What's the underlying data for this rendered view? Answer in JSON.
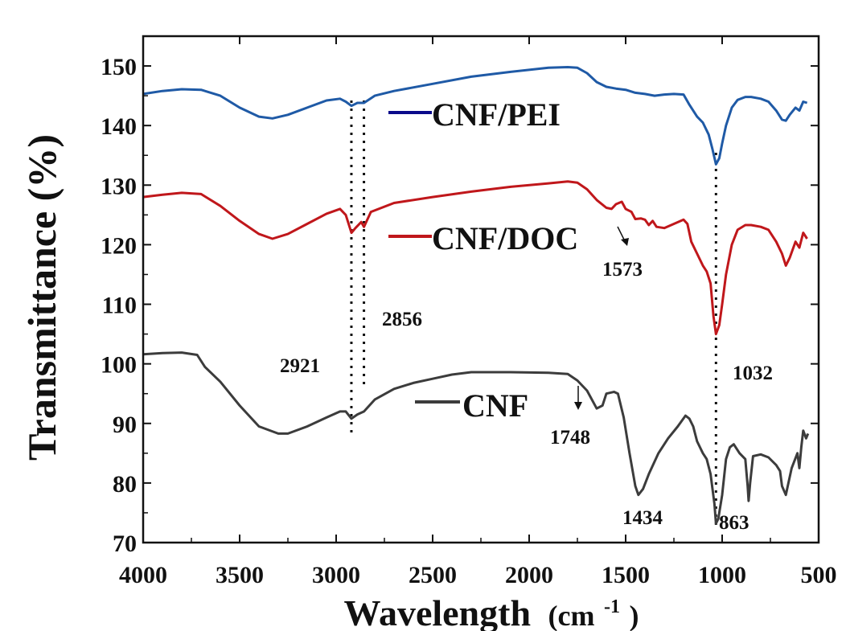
{
  "chart_data": {
    "type": "line",
    "xlabel": "Wavelength",
    "xlabel_unit_base": "(cm",
    "xlabel_unit_sup": "-1",
    "xlabel_unit_close": ")",
    "ylabel": "Transmittance (%)",
    "xlim": [
      4000,
      500
    ],
    "ylim": [
      70,
      155
    ],
    "x_ticks": [
      4000,
      3500,
      3000,
      2500,
      2000,
      1500,
      1000,
      500
    ],
    "x_tick_labels": [
      "4000",
      "3500",
      "3000",
      "2500",
      "2000",
      "1500",
      "1000",
      "500"
    ],
    "y_ticks": [
      70,
      80,
      90,
      100,
      110,
      120,
      130,
      140,
      150
    ],
    "y_tick_labels": [
      "70",
      "80",
      "90",
      "100",
      "110",
      "120",
      "130",
      "140",
      "150"
    ],
    "grid": false,
    "series": [
      {
        "name": "CNF/PEI",
        "color": "#1f5aa6",
        "legend_color": "#0a0a8a",
        "points": [
          [
            4000,
            145.3
          ],
          [
            3900,
            145.8
          ],
          [
            3800,
            146.1
          ],
          [
            3700,
            146.0
          ],
          [
            3600,
            145.0
          ],
          [
            3500,
            143.0
          ],
          [
            3400,
            141.5
          ],
          [
            3330,
            141.2
          ],
          [
            3250,
            141.8
          ],
          [
            3150,
            143.0
          ],
          [
            3050,
            144.2
          ],
          [
            2980,
            144.5
          ],
          [
            2950,
            144.0
          ],
          [
            2921,
            143.3
          ],
          [
            2890,
            143.8
          ],
          [
            2856,
            143.8
          ],
          [
            2800,
            145.0
          ],
          [
            2700,
            145.8
          ],
          [
            2500,
            147.0
          ],
          [
            2300,
            148.2
          ],
          [
            2100,
            149.0
          ],
          [
            1900,
            149.7
          ],
          [
            1800,
            149.8
          ],
          [
            1750,
            149.7
          ],
          [
            1700,
            148.8
          ],
          [
            1650,
            147.3
          ],
          [
            1600,
            146.5
          ],
          [
            1550,
            146.2
          ],
          [
            1500,
            146.0
          ],
          [
            1450,
            145.5
          ],
          [
            1400,
            145.3
          ],
          [
            1350,
            145.0
          ],
          [
            1300,
            145.2
          ],
          [
            1250,
            145.3
          ],
          [
            1200,
            145.2
          ],
          [
            1170,
            143.5
          ],
          [
            1130,
            141.5
          ],
          [
            1100,
            140.5
          ],
          [
            1070,
            138.5
          ],
          [
            1050,
            136.0
          ],
          [
            1032,
            133.5
          ],
          [
            1015,
            134.5
          ],
          [
            1000,
            137.0
          ],
          [
            980,
            140.0
          ],
          [
            950,
            143.0
          ],
          [
            920,
            144.3
          ],
          [
            880,
            144.8
          ],
          [
            850,
            144.8
          ],
          [
            800,
            144.5
          ],
          [
            760,
            144.0
          ],
          [
            720,
            142.5
          ],
          [
            690,
            141.0
          ],
          [
            670,
            140.8
          ],
          [
            650,
            141.8
          ],
          [
            620,
            143.0
          ],
          [
            600,
            142.5
          ],
          [
            580,
            144.0
          ],
          [
            560,
            143.8
          ]
        ]
      },
      {
        "name": "CNF/DOC",
        "color": "#c0171b",
        "legend_color": "#c0171b",
        "points": [
          [
            4000,
            128.0
          ],
          [
            3900,
            128.4
          ],
          [
            3800,
            128.7
          ],
          [
            3700,
            128.5
          ],
          [
            3600,
            126.5
          ],
          [
            3500,
            124.0
          ],
          [
            3400,
            121.8
          ],
          [
            3330,
            121.0
          ],
          [
            3250,
            121.8
          ],
          [
            3150,
            123.5
          ],
          [
            3050,
            125.2
          ],
          [
            2980,
            126.0
          ],
          [
            2950,
            125.0
          ],
          [
            2921,
            122.0
          ],
          [
            2900,
            122.8
          ],
          [
            2870,
            123.8
          ],
          [
            2856,
            123.0
          ],
          [
            2820,
            125.5
          ],
          [
            2700,
            127.0
          ],
          [
            2500,
            128.0
          ],
          [
            2300,
            128.9
          ],
          [
            2100,
            129.7
          ],
          [
            1900,
            130.3
          ],
          [
            1800,
            130.6
          ],
          [
            1750,
            130.4
          ],
          [
            1700,
            129.3
          ],
          [
            1650,
            127.5
          ],
          [
            1600,
            126.2
          ],
          [
            1573,
            126.0
          ],
          [
            1550,
            126.8
          ],
          [
            1520,
            127.2
          ],
          [
            1500,
            126.0
          ],
          [
            1470,
            125.5
          ],
          [
            1450,
            124.3
          ],
          [
            1420,
            124.4
          ],
          [
            1400,
            124.2
          ],
          [
            1380,
            123.3
          ],
          [
            1360,
            124.0
          ],
          [
            1340,
            123.0
          ],
          [
            1300,
            122.8
          ],
          [
            1250,
            123.5
          ],
          [
            1200,
            124.2
          ],
          [
            1180,
            123.5
          ],
          [
            1160,
            120.5
          ],
          [
            1130,
            118.5
          ],
          [
            1100,
            116.5
          ],
          [
            1080,
            115.5
          ],
          [
            1060,
            113.5
          ],
          [
            1045,
            108.0
          ],
          [
            1032,
            105.0
          ],
          [
            1015,
            106.5
          ],
          [
            1000,
            110.0
          ],
          [
            980,
            115.0
          ],
          [
            950,
            120.0
          ],
          [
            920,
            122.5
          ],
          [
            880,
            123.3
          ],
          [
            850,
            123.3
          ],
          [
            800,
            123.0
          ],
          [
            760,
            122.5
          ],
          [
            720,
            120.5
          ],
          [
            690,
            118.5
          ],
          [
            670,
            116.5
          ],
          [
            650,
            117.8
          ],
          [
            620,
            120.5
          ],
          [
            600,
            119.5
          ],
          [
            580,
            122.0
          ],
          [
            560,
            121.0
          ]
        ]
      },
      {
        "name": "CNF",
        "color": "#3c3c3c",
        "legend_color": "#3c3c3c",
        "points": [
          [
            4000,
            101.6
          ],
          [
            3900,
            101.8
          ],
          [
            3800,
            101.9
          ],
          [
            3720,
            101.5
          ],
          [
            3680,
            99.5
          ],
          [
            3600,
            97.0
          ],
          [
            3500,
            93.0
          ],
          [
            3400,
            89.5
          ],
          [
            3300,
            88.3
          ],
          [
            3250,
            88.3
          ],
          [
            3150,
            89.5
          ],
          [
            3050,
            91.0
          ],
          [
            2980,
            92.0
          ],
          [
            2950,
            92.0
          ],
          [
            2921,
            90.8
          ],
          [
            2890,
            91.5
          ],
          [
            2856,
            92.0
          ],
          [
            2800,
            94.0
          ],
          [
            2700,
            95.8
          ],
          [
            2600,
            96.8
          ],
          [
            2500,
            97.5
          ],
          [
            2400,
            98.2
          ],
          [
            2300,
            98.6
          ],
          [
            2100,
            98.6
          ],
          [
            1900,
            98.5
          ],
          [
            1800,
            98.3
          ],
          [
            1750,
            97.2
          ],
          [
            1700,
            95.5
          ],
          [
            1650,
            92.5
          ],
          [
            1620,
            93.0
          ],
          [
            1600,
            95.0
          ],
          [
            1560,
            95.3
          ],
          [
            1540,
            95.0
          ],
          [
            1510,
            91.0
          ],
          [
            1480,
            85.0
          ],
          [
            1450,
            79.5
          ],
          [
            1434,
            78.0
          ],
          [
            1410,
            79.0
          ],
          [
            1380,
            81.5
          ],
          [
            1330,
            85.0
          ],
          [
            1280,
            87.5
          ],
          [
            1230,
            89.5
          ],
          [
            1190,
            91.3
          ],
          [
            1170,
            90.8
          ],
          [
            1150,
            89.5
          ],
          [
            1130,
            87.0
          ],
          [
            1100,
            85.0
          ],
          [
            1080,
            84.0
          ],
          [
            1060,
            81.5
          ],
          [
            1040,
            76.5
          ],
          [
            1032,
            73.2
          ],
          [
            1020,
            74.0
          ],
          [
            1000,
            78.0
          ],
          [
            980,
            84.0
          ],
          [
            960,
            86.0
          ],
          [
            940,
            86.5
          ],
          [
            910,
            85.0
          ],
          [
            880,
            84.0
          ],
          [
            868,
            79.5
          ],
          [
            863,
            77.0
          ],
          [
            855,
            80.0
          ],
          [
            840,
            84.5
          ],
          [
            800,
            84.8
          ],
          [
            760,
            84.3
          ],
          [
            720,
            83.0
          ],
          [
            700,
            82.0
          ],
          [
            690,
            79.5
          ],
          [
            670,
            78.0
          ],
          [
            660,
            79.5
          ],
          [
            640,
            82.5
          ],
          [
            610,
            85.0
          ],
          [
            600,
            82.5
          ],
          [
            590,
            86.0
          ],
          [
            580,
            88.8
          ],
          [
            565,
            87.5
          ],
          [
            555,
            88.3
          ]
        ]
      }
    ],
    "guide_lines": [
      2921,
      2856,
      1032
    ],
    "annotations": [
      {
        "text": "2921"
      },
      {
        "text": "2856"
      },
      {
        "text": "1573"
      },
      {
        "text": "1748"
      },
      {
        "text": "1434"
      },
      {
        "text": "1032"
      },
      {
        "text": "863"
      }
    ]
  }
}
